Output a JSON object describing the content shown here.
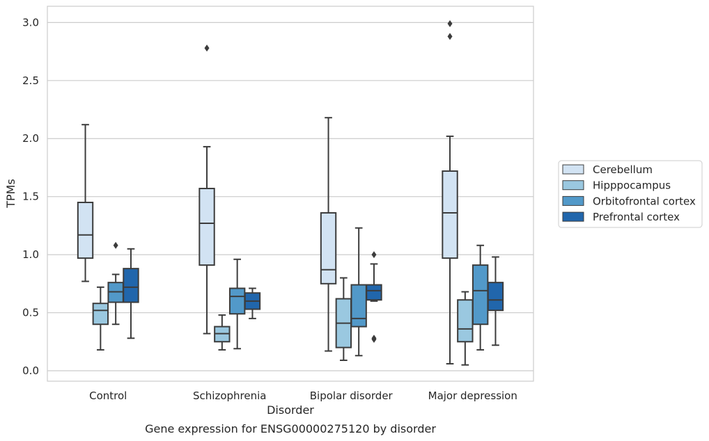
{
  "chart_data": {
    "type": "box",
    "title": "Gene expression for ENSG00000275120 by disorder",
    "xlabel": "Disorder",
    "ylabel": "TPMs",
    "ylim": [
      -0.09,
      3.14
    ],
    "yticks": [
      0.0,
      0.5,
      1.0,
      1.5,
      2.0,
      2.5,
      3.0
    ],
    "ytick_labels": [
      "0.0",
      "0.5",
      "1.0",
      "1.5",
      "2.0",
      "2.5",
      "3.0"
    ],
    "grid": "horizontal",
    "legend_position": "right",
    "categories": [
      "Control",
      "Schizophrenia",
      "Bipolar disorder",
      "Major depression"
    ],
    "series": [
      {
        "name": "Cerebellum",
        "color": "#d2e3f3",
        "boxes": [
          {
            "whislo": 0.77,
            "q1": 0.97,
            "med": 1.17,
            "q3": 1.45,
            "whishi": 2.12,
            "fliers": []
          },
          {
            "whislo": 0.32,
            "q1": 0.91,
            "med": 1.27,
            "q3": 1.57,
            "whishi": 1.93,
            "fliers": [
              2.78
            ]
          },
          {
            "whislo": 0.17,
            "q1": 0.75,
            "med": 0.87,
            "q3": 1.36,
            "whishi": 2.18,
            "fliers": []
          },
          {
            "whislo": 0.06,
            "q1": 0.97,
            "med": 1.36,
            "q3": 1.72,
            "whishi": 2.02,
            "fliers": [
              2.88,
              2.99
            ]
          }
        ]
      },
      {
        "name": "Hipppocampus",
        "color": "#9ac8e0",
        "boxes": [
          {
            "whislo": 0.18,
            "q1": 0.4,
            "med": 0.52,
            "q3": 0.58,
            "whishi": 0.72,
            "fliers": []
          },
          {
            "whislo": 0.18,
            "q1": 0.25,
            "med": 0.32,
            "q3": 0.38,
            "whishi": 0.48,
            "fliers": []
          },
          {
            "whislo": 0.09,
            "q1": 0.2,
            "med": 0.41,
            "q3": 0.62,
            "whishi": 0.8,
            "fliers": []
          },
          {
            "whislo": 0.05,
            "q1": 0.25,
            "med": 0.36,
            "q3": 0.61,
            "whishi": 0.68,
            "fliers": []
          }
        ]
      },
      {
        "name": "Orbitofrontal cortex",
        "color": "#5299c9",
        "boxes": [
          {
            "whislo": 0.4,
            "q1": 0.59,
            "med": 0.68,
            "q3": 0.76,
            "whishi": 0.83,
            "fliers": [
              1.08
            ]
          },
          {
            "whislo": 0.19,
            "q1": 0.49,
            "med": 0.64,
            "q3": 0.71,
            "whishi": 0.96,
            "fliers": []
          },
          {
            "whislo": 0.13,
            "q1": 0.38,
            "med": 0.45,
            "q3": 0.74,
            "whishi": 1.23,
            "fliers": []
          },
          {
            "whislo": 0.18,
            "q1": 0.4,
            "med": 0.69,
            "q3": 0.91,
            "whishi": 1.08,
            "fliers": []
          }
        ]
      },
      {
        "name": "Prefrontal cortex",
        "color": "#2166ac",
        "boxes": [
          {
            "whislo": 0.28,
            "q1": 0.59,
            "med": 0.72,
            "q3": 0.88,
            "whishi": 1.05,
            "fliers": []
          },
          {
            "whislo": 0.45,
            "q1": 0.53,
            "med": 0.6,
            "q3": 0.67,
            "whishi": 0.71,
            "fliers": []
          },
          {
            "whislo": 0.6,
            "q1": 0.61,
            "med": 0.69,
            "q3": 0.74,
            "whishi": 0.92,
            "fliers": [
              1.0,
              0.27,
              0.28
            ]
          },
          {
            "whislo": 0.22,
            "q1": 0.52,
            "med": 0.61,
            "q3": 0.76,
            "whishi": 0.98,
            "fliers": []
          }
        ]
      }
    ]
  }
}
